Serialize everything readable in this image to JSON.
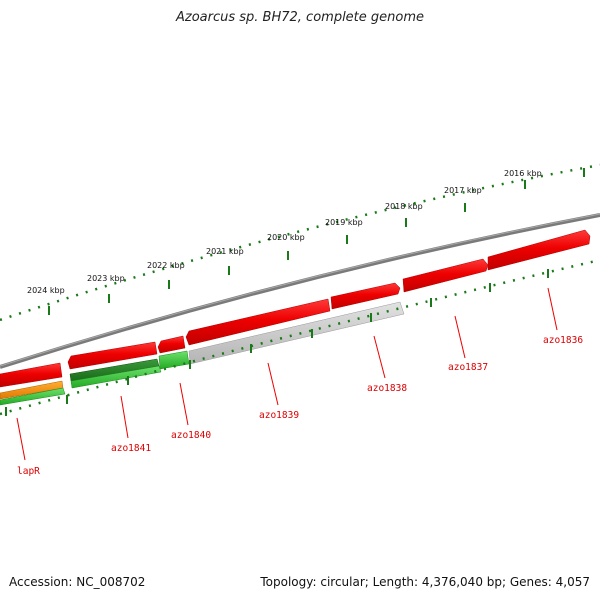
{
  "title": "Azoarcus sp. BH72, complete genome",
  "footer": {
    "accession": "Accession: NC_008702",
    "summary": "Topology: circular; Length: 4,376,040 bp; Genes: 4,057"
  },
  "scale_labels": [
    "2016 kbp",
    "2017 kbp",
    "2018 kbp",
    "2019 kbp",
    "2020 kbp",
    "2021 kbp",
    "2022 kbp",
    "2023 kbp",
    "2024 kbp"
  ],
  "gene_labels": [
    "azo1836",
    "azo1837",
    "azo1838",
    "azo1839",
    "azo1840",
    "azo1841",
    "lapR"
  ],
  "colors": {
    "backbone": "#808080",
    "cds_red": "#ee0000",
    "cds_grey": "#c8c8c8",
    "cds_green": "#33cc33",
    "cds_darkgreen": "#1f7a1f",
    "cds_orange": "#f08c00",
    "tick": "#1a7a1a",
    "label": "#dd0000"
  }
}
